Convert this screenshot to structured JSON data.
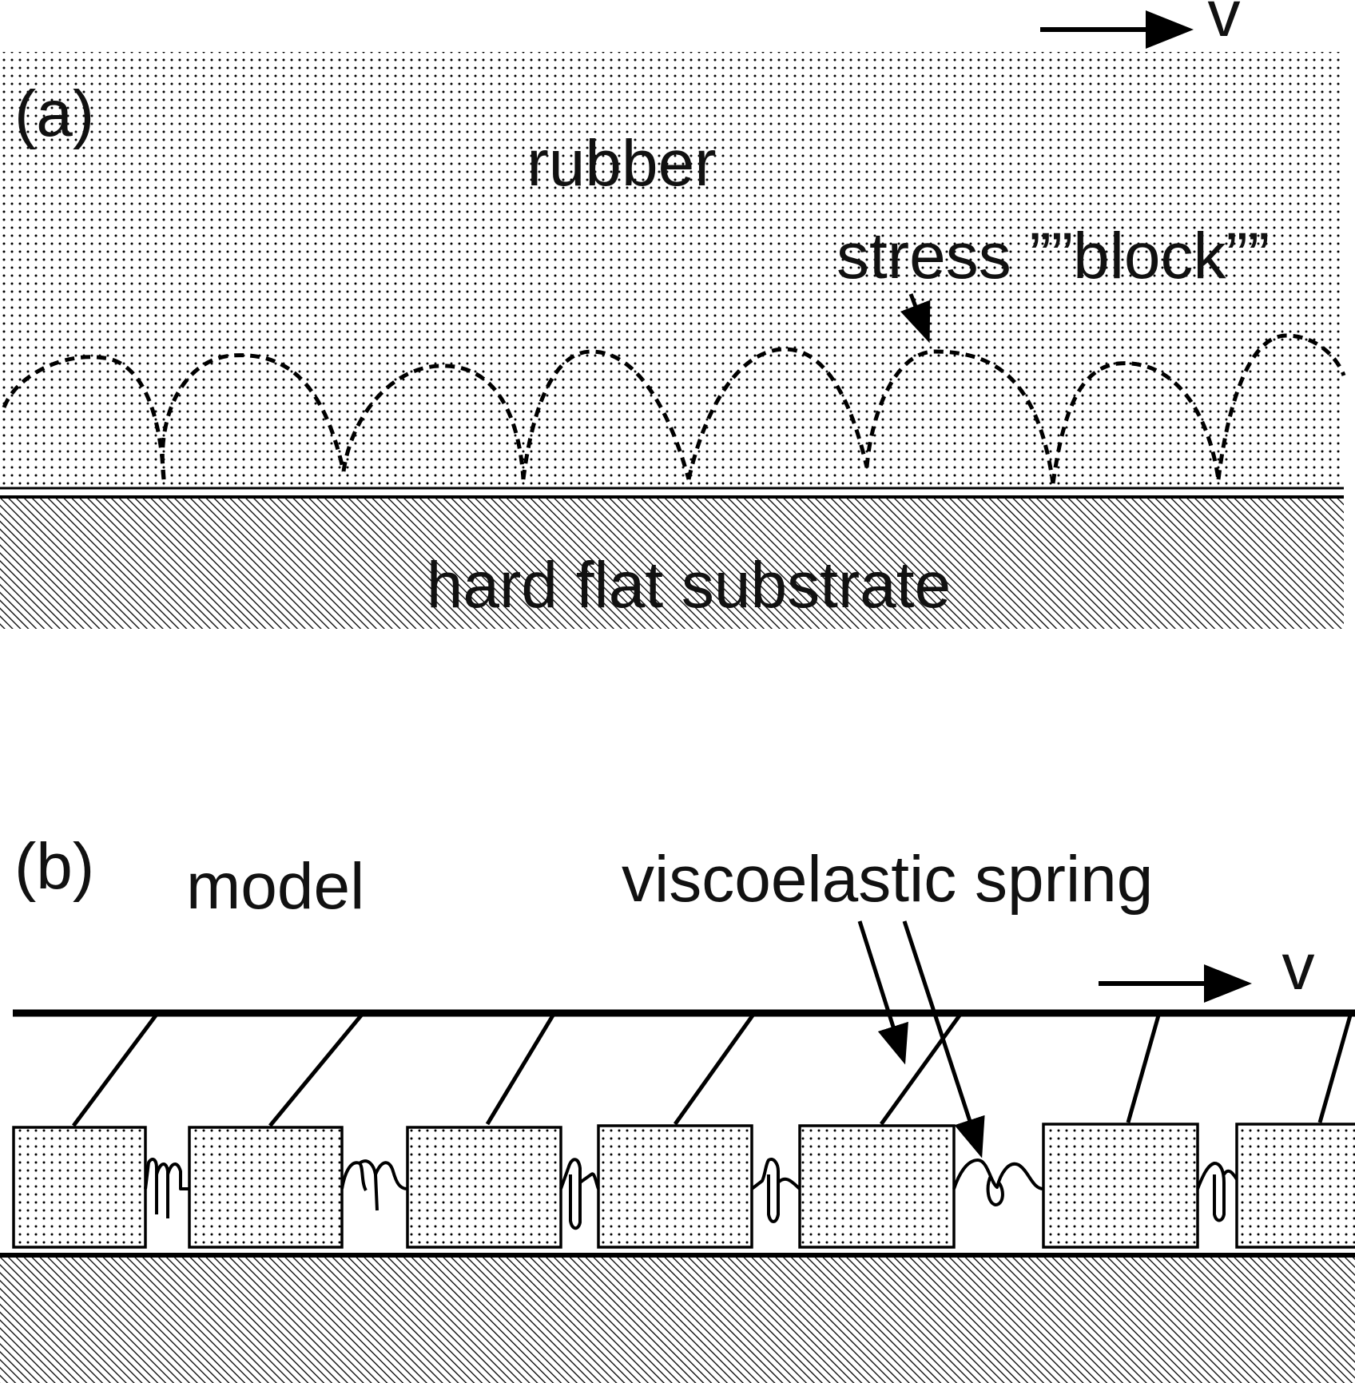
{
  "panel_a": {
    "label": "(a)",
    "rubber_label": "rubber",
    "velocity_label": "v",
    "stress_block_label": "stress ””block””",
    "substrate_label": "hard flat substrate"
  },
  "panel_b": {
    "label": "(b)",
    "model_label": "model",
    "spring_label": "viscoelastic spring",
    "velocity_label": "v",
    "block_count": 7
  }
}
